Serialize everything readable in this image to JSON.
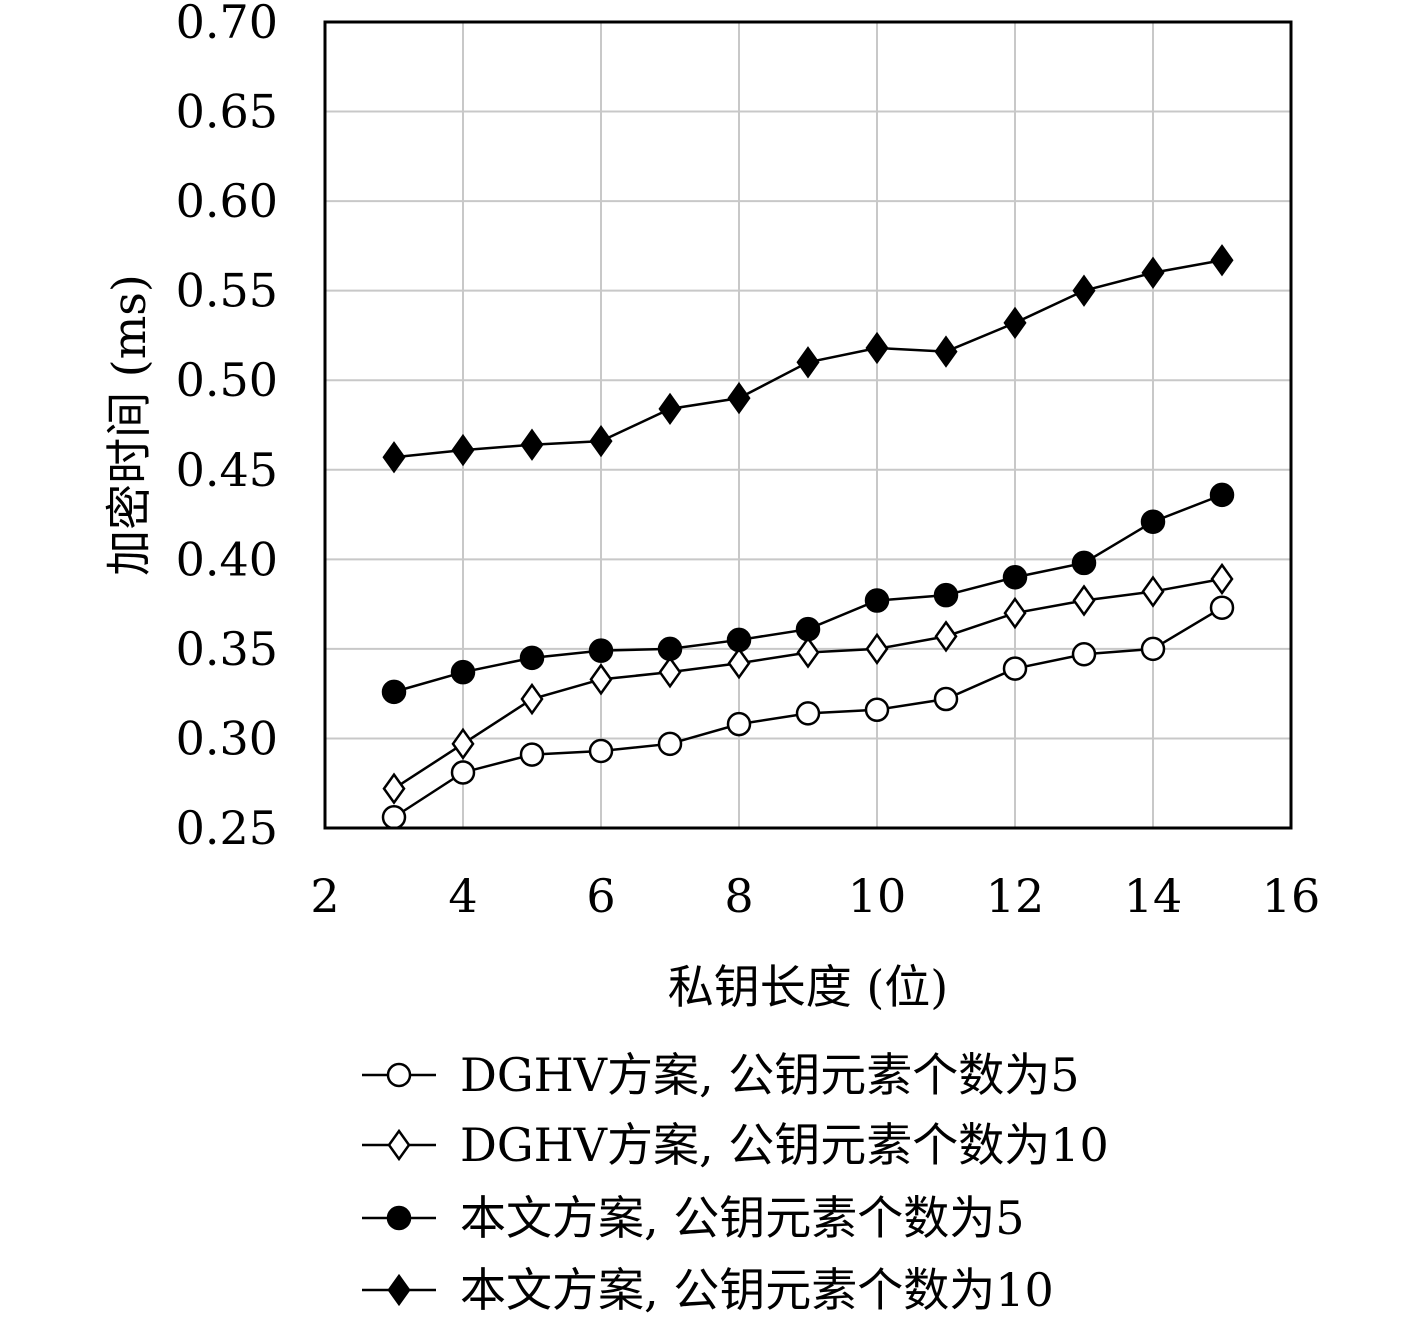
{
  "chart_data": {
    "type": "line",
    "title": "",
    "xlabel": "私钥长度 (位)",
    "ylabel": "加密时间 (ms)",
    "xlim": [
      2,
      16
    ],
    "ylim": [
      0.25,
      0.7
    ],
    "xticks": [
      2,
      4,
      6,
      8,
      10,
      12,
      14,
      16
    ],
    "yticks": [
      0.25,
      0.3,
      0.35,
      0.4,
      0.45,
      0.5,
      0.55,
      0.6,
      0.65,
      0.7
    ],
    "ytick_labels": [
      "0.25",
      "0.30",
      "0.35",
      "0.40",
      "0.45",
      "0.50",
      "0.55",
      "0.60",
      "0.65",
      "0.70"
    ],
    "grid": true,
    "legend_position": "below",
    "x": [
      3,
      4,
      5,
      6,
      7,
      8,
      9,
      10,
      11,
      12,
      13,
      14,
      15
    ],
    "series": [
      {
        "name": "DGHV方案, 公钥元素个数为5",
        "marker": "circle-open",
        "values": [
          0.256,
          0.281,
          0.291,
          0.293,
          0.297,
          0.308,
          0.314,
          0.316,
          0.322,
          0.339,
          0.347,
          0.35,
          0.373
        ]
      },
      {
        "name": "DGHV方案, 公钥元素个数为10",
        "marker": "diamond-open",
        "values": [
          0.272,
          0.297,
          0.322,
          0.333,
          0.337,
          0.342,
          0.348,
          0.35,
          0.357,
          0.37,
          0.377,
          0.382,
          0.389
        ]
      },
      {
        "name": "本文方案, 公钥元素个数为5",
        "marker": "circle-filled",
        "values": [
          0.326,
          0.337,
          0.345,
          0.349,
          0.35,
          0.355,
          0.361,
          0.377,
          0.38,
          0.39,
          0.398,
          0.421,
          0.436
        ]
      },
      {
        "name": "本文方案, 公钥元素个数为10",
        "marker": "diamond-filled",
        "values": [
          0.457,
          0.461,
          0.464,
          0.466,
          0.484,
          0.49,
          0.51,
          0.518,
          0.516,
          0.532,
          0.55,
          0.56,
          0.567
        ]
      }
    ]
  }
}
